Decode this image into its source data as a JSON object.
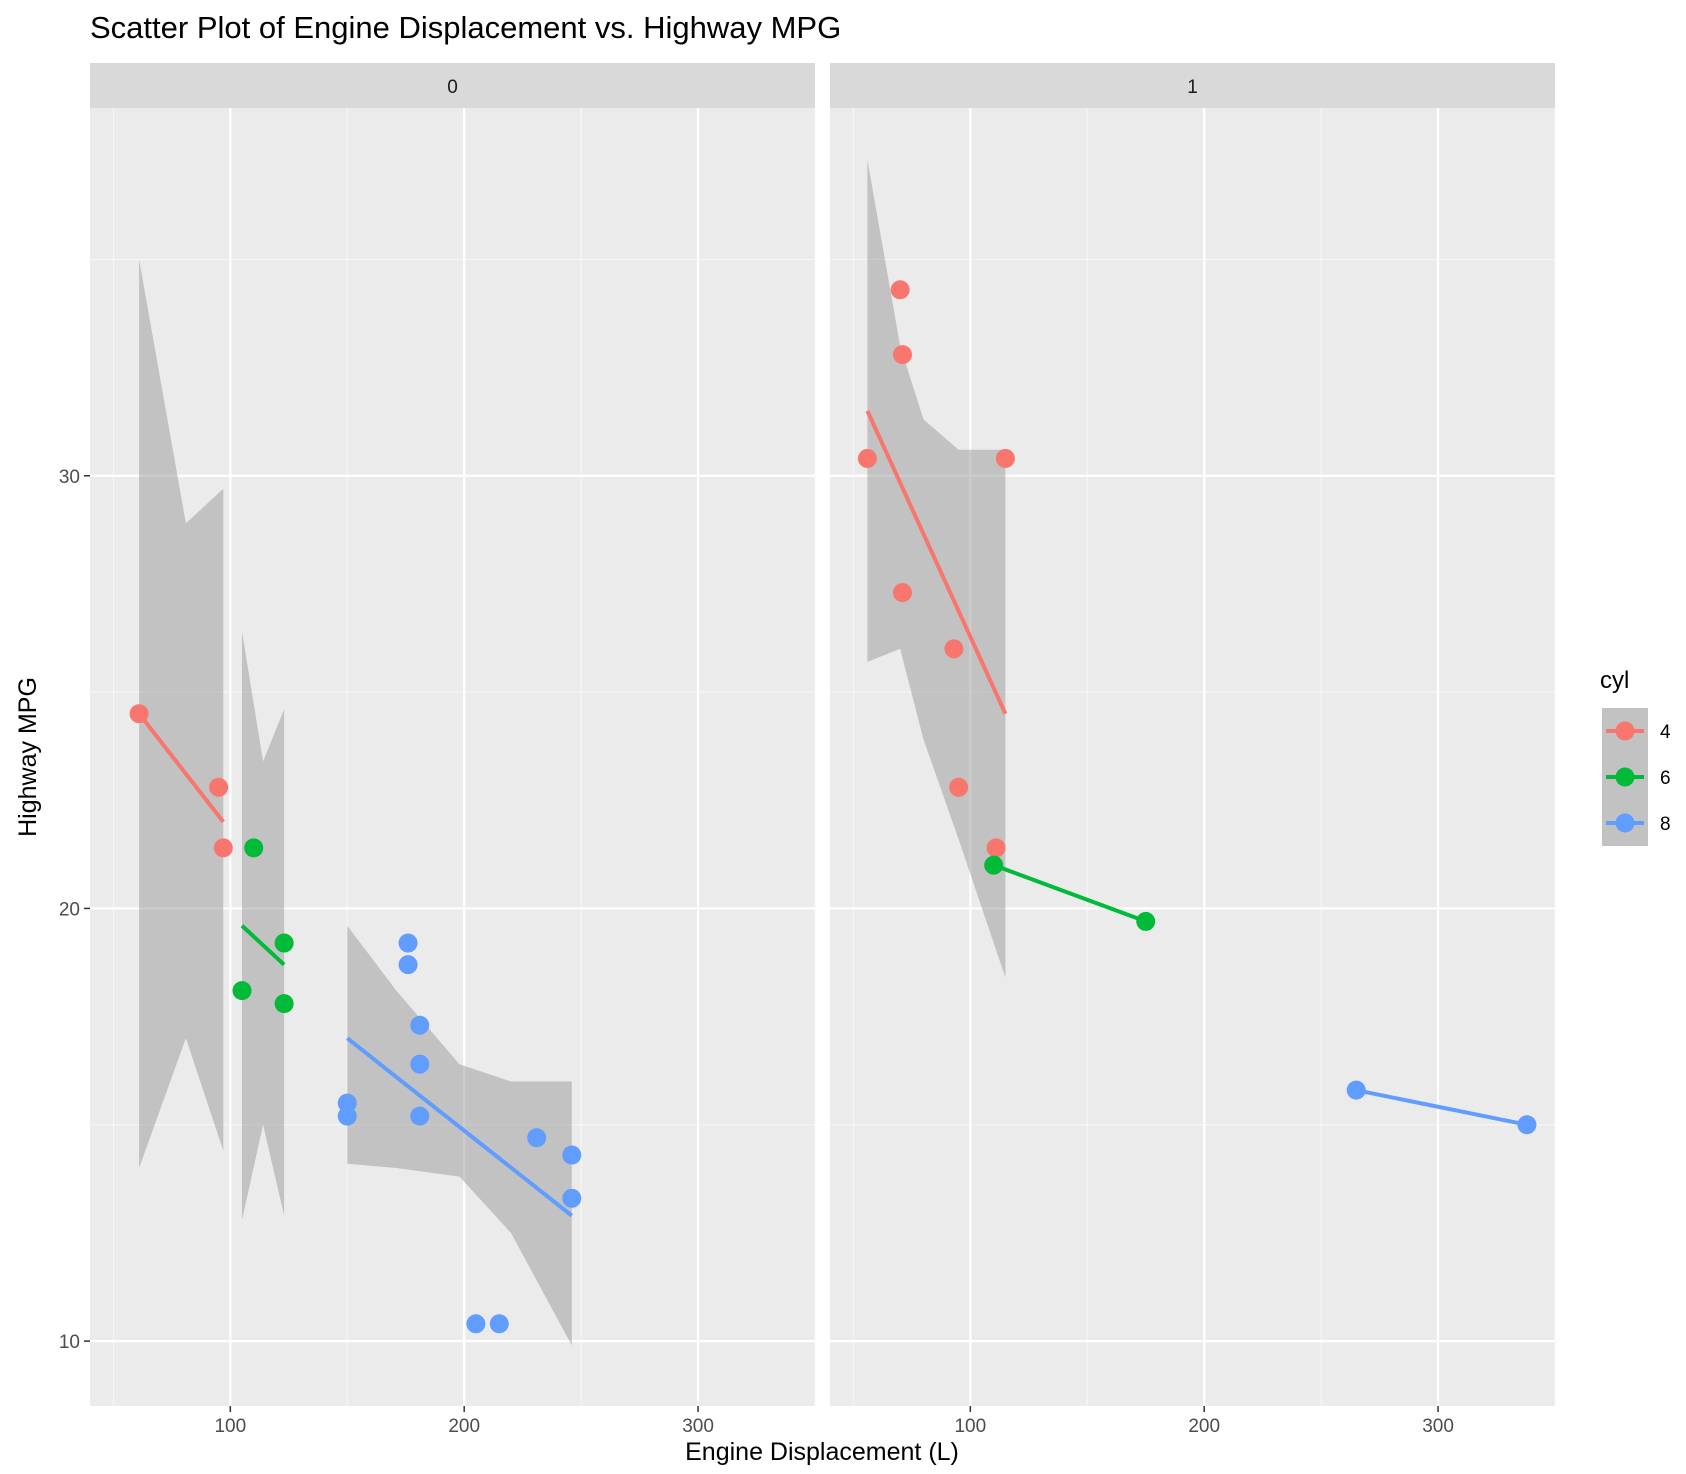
{
  "chart_data": {
    "type": "scatter",
    "title": "Scatter Plot of Engine Displacement vs. Highway MPG",
    "xlabel": "Engine Displacement (L)",
    "ylabel": "Highway MPG",
    "xlim": [
      40,
      350
    ],
    "ylim": [
      8.5,
      38.5
    ],
    "x_ticks": [
      100,
      200,
      300
    ],
    "y_ticks": [
      10,
      20,
      30
    ],
    "grid": true,
    "legend": {
      "title": "cyl",
      "placement": "right",
      "entries": [
        "4",
        "6",
        "8"
      ]
    },
    "colors": {
      "4": "#F8766D",
      "6": "#00BA38",
      "8": "#619CFF"
    },
    "facets": [
      {
        "label": "0",
        "series": [
          {
            "name": "4",
            "points": [
              [
                61,
                24.5
              ],
              [
                95,
                22.8
              ],
              [
                97,
                21.4
              ]
            ],
            "fit": {
              "x": [
                61,
                97
              ],
              "y": [
                24.5,
                22.0
              ]
            },
            "band": {
              "x": [
                61,
                81,
                97
              ],
              "upper": [
                35.0,
                28.9,
                29.7
              ],
              "lower": [
                14.0,
                17.0,
                14.4
              ]
            }
          },
          {
            "name": "6",
            "points": [
              [
                105,
                18.1
              ],
              [
                110,
                21.4
              ],
              [
                123,
                19.2
              ],
              [
                123,
                17.8
              ]
            ],
            "fit": {
              "x": [
                105,
                123
              ],
              "y": [
                19.6,
                18.7
              ]
            },
            "band": {
              "x": [
                105,
                114,
                123
              ],
              "upper": [
                26.4,
                23.4,
                24.6
              ],
              "lower": [
                12.8,
                15.0,
                12.9
              ]
            }
          },
          {
            "name": "8",
            "points": [
              [
                150,
                15.5
              ],
              [
                150,
                15.2
              ],
              [
                176,
                19.2
              ],
              [
                176,
                18.7
              ],
              [
                181,
                17.3
              ],
              [
                181,
                16.4
              ],
              [
                181,
                15.2
              ],
              [
                205,
                10.4
              ],
              [
                215,
                10.4
              ],
              [
                231,
                14.7
              ],
              [
                246,
                14.3
              ],
              [
                246,
                13.3
              ]
            ],
            "fit": {
              "x": [
                150,
                246
              ],
              "y": [
                17.0,
                12.9
              ]
            },
            "band": {
              "x": [
                150,
                171,
                198,
                220,
                246
              ],
              "upper": [
                19.6,
                18.1,
                16.4,
                16.0,
                16.0
              ],
              "lower": [
                14.1,
                14.0,
                13.8,
                12.5,
                9.9
              ]
            }
          }
        ]
      },
      {
        "label": "1",
        "series": [
          {
            "name": "4",
            "points": [
              [
                56,
                30.4
              ],
              [
                70,
                34.3
              ],
              [
                71,
                32.8
              ],
              [
                71,
                27.3
              ],
              [
                93,
                26.0
              ],
              [
                95,
                22.8
              ],
              [
                111,
                21.4
              ],
              [
                115,
                30.4
              ]
            ],
            "fit": {
              "x": [
                56,
                115
              ],
              "y": [
                31.5,
                24.5
              ]
            },
            "band": {
              "x": [
                56,
                70,
                80,
                95,
                115
              ],
              "upper": [
                37.3,
                33.0,
                31.3,
                30.6,
                30.6
              ],
              "lower": [
                25.7,
                26.0,
                23.9,
                21.6,
                18.4
              ]
            }
          },
          {
            "name": "6",
            "points": [
              [
                110,
                21.0
              ],
              [
                175,
                19.7
              ]
            ],
            "fit": {
              "x": [
                110,
                175
              ],
              "y": [
                21.0,
                19.7
              ]
            }
          },
          {
            "name": "8",
            "points": [
              [
                265,
                15.8
              ],
              [
                338,
                15.0
              ]
            ],
            "fit": {
              "x": [
                265,
                338
              ],
              "y": [
                15.8,
                15.0
              ]
            }
          }
        ]
      }
    ]
  }
}
